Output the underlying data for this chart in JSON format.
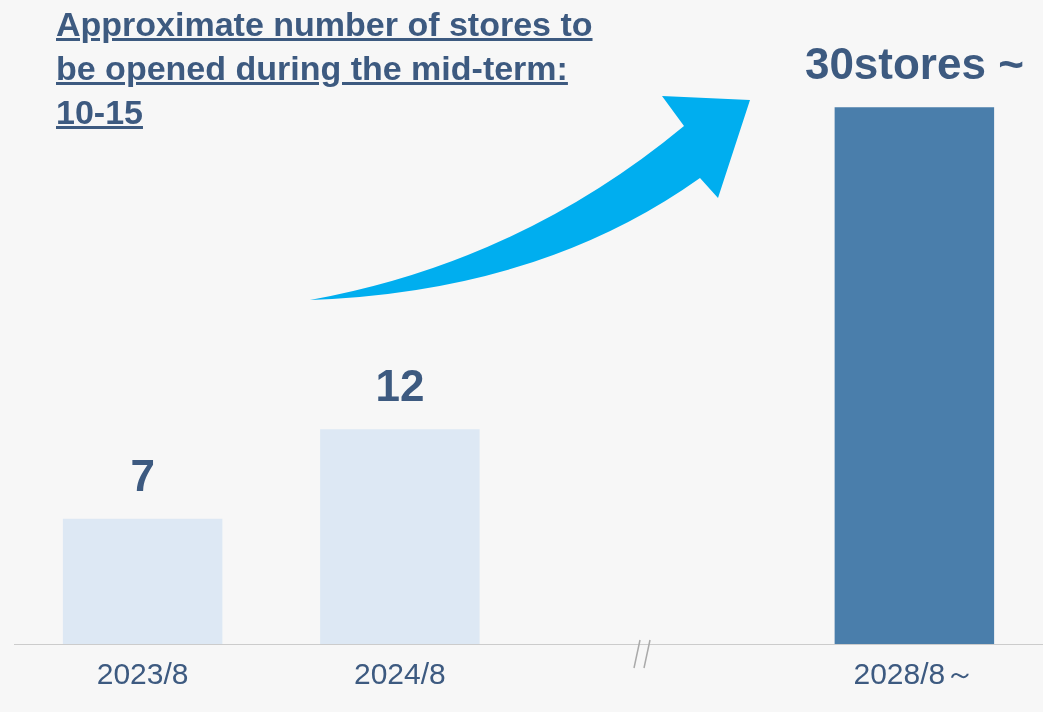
{
  "chart_data": {
    "type": "bar",
    "title": "Approximate number of stores to be opened during the mid-term: 10-15",
    "categories": [
      "2023/8",
      "2024/8",
      null,
      "2028/8～"
    ],
    "values": [
      7,
      12,
      null,
      30
    ],
    "colors": [
      "#dde8f4",
      "#dde8f4",
      "#dde8f4",
      "#4a7eab"
    ],
    "value_labels": [
      "7",
      "12",
      null,
      "30stores ~"
    ],
    "grid": false,
    "legend": false,
    "tick_labels": "x"
  }
}
